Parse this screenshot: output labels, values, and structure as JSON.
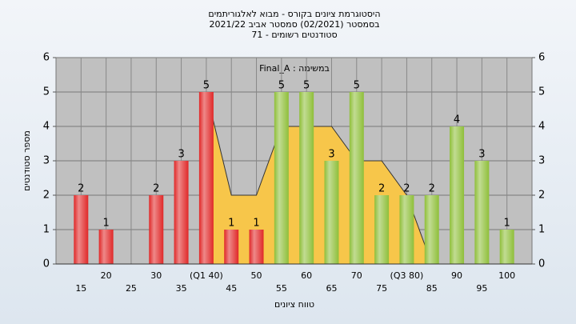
{
  "chart_data": {
    "type": "bar",
    "title": "היסטוגרמת ציונים בקורס - מבוא לאלגוריתמים",
    "subtitle": "בסמסטר  (02/2021)  סמסטר אביב 2021/22",
    "subtitle2": "סטודנטים רשומים - 71",
    "annotation": "Final_A : במשימה",
    "x_label": "טווח ציונים",
    "y_label": "מספר סטודנטים",
    "categories": [
      "15",
      "20",
      "25",
      "30",
      "35",
      "(Q1 40)",
      "45",
      "50",
      "55",
      "60",
      "65",
      "70",
      "75",
      "(Q3 80)",
      "85",
      "90",
      "95",
      "100"
    ],
    "values": [
      2,
      1,
      0,
      2,
      3,
      5,
      1,
      1,
      5,
      5,
      3,
      5,
      2,
      2,
      2,
      4,
      3,
      1
    ],
    "colors": [
      "#e02828",
      "#e02828",
      "#e02828",
      "#e02828",
      "#e02828",
      "#e02828",
      "#e02828",
      "#e02828",
      "#8fbf3a",
      "#8fbf3a",
      "#8fbf3a",
      "#8fbf3a",
      "#8fbf3a",
      "#8fbf3a",
      "#8fbf3a",
      "#8fbf3a",
      "#8fbf3a",
      "#8fbf3a"
    ],
    "area": {
      "color": "#f7c64a",
      "values": [
        null,
        null,
        null,
        null,
        null,
        5,
        2,
        2,
        4,
        4,
        4,
        3,
        3,
        2,
        0,
        null,
        null,
        null
      ]
    },
    "ylim": [
      0,
      6
    ],
    "yticks": [
      0,
      1,
      2,
      3,
      4,
      5,
      6
    ],
    "y2lim": [
      0,
      6
    ],
    "y2ticks": [
      0,
      1,
      2,
      3,
      4,
      5,
      6
    ],
    "grid": true
  }
}
